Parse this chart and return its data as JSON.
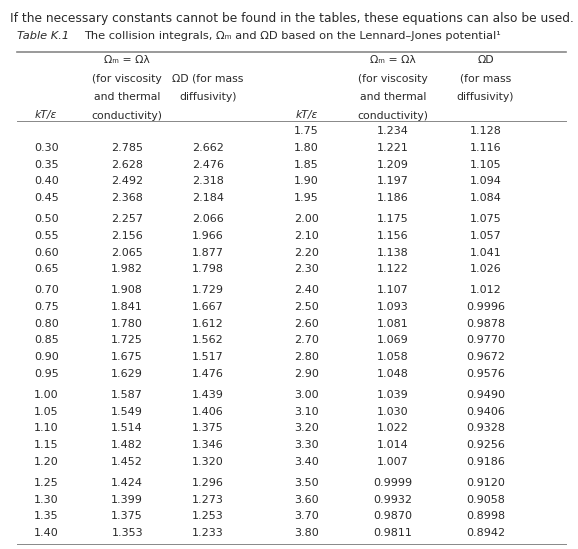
{
  "top_text": "If the necessary constants cannot be found in the tables, these equations can also be used.",
  "table_label": "Table K.1",
  "table_subtitle": "The collision integrals, Ωₘ and ΩD based on the Lennard–Jones potential¹",
  "col0_header_line1": "Ωₘ = Ωλ",
  "col0_header_line2": "(for viscosity",
  "col0_header_line3": "and thermal",
  "col0_header_line4": "conductivity)",
  "col1_header_line1": "ΩD (for mass",
  "col1_header_line2": "diffusivity)",
  "col4_header_line1": "Ωₘ = Ωλ",
  "col4_header_line2": "(for viscosity",
  "col4_header_line3": "and thermal",
  "col4_header_line4": "conductivity)",
  "col5_header_line1": "ΩD",
  "col5_header_line2": "(for mass",
  "col5_header_line3": "diffusivity)",
  "kTe_label": "kT/ε",
  "data": [
    [
      "",
      "",
      "",
      "1.75",
      "1.234",
      "1.128"
    ],
    [
      "0.30",
      "2.785",
      "2.662",
      "1.80",
      "1.221",
      "1.116"
    ],
    [
      "0.35",
      "2.628",
      "2.476",
      "1.85",
      "1.209",
      "1.105"
    ],
    [
      "0.40",
      "2.492",
      "2.318",
      "1.90",
      "1.197",
      "1.094"
    ],
    [
      "0.45",
      "2.368",
      "2.184",
      "1.95",
      "1.186",
      "1.084"
    ],
    [
      "",
      "",
      "",
      "",
      "",
      ""
    ],
    [
      "0.50",
      "2.257",
      "2.066",
      "2.00",
      "1.175",
      "1.075"
    ],
    [
      "0.55",
      "2.156",
      "1.966",
      "2.10",
      "1.156",
      "1.057"
    ],
    [
      "0.60",
      "2.065",
      "1.877",
      "2.20",
      "1.138",
      "1.041"
    ],
    [
      "0.65",
      "1.982",
      "1.798",
      "2.30",
      "1.122",
      "1.026"
    ],
    [
      "",
      "",
      "",
      "",
      "",
      ""
    ],
    [
      "0.70",
      "1.908",
      "1.729",
      "2.40",
      "1.107",
      "1.012"
    ],
    [
      "0.75",
      "1.841",
      "1.667",
      "2.50",
      "1.093",
      "0.9996"
    ],
    [
      "0.80",
      "1.780",
      "1.612",
      "2.60",
      "1.081",
      "0.9878"
    ],
    [
      "0.85",
      "1.725",
      "1.562",
      "2.70",
      "1.069",
      "0.9770"
    ],
    [
      "0.90",
      "1.675",
      "1.517",
      "2.80",
      "1.058",
      "0.9672"
    ],
    [
      "0.95",
      "1.629",
      "1.476",
      "2.90",
      "1.048",
      "0.9576"
    ],
    [
      "",
      "",
      "",
      "",
      "",
      ""
    ],
    [
      "1.00",
      "1.587",
      "1.439",
      "3.00",
      "1.039",
      "0.9490"
    ],
    [
      "1.05",
      "1.549",
      "1.406",
      "3.10",
      "1.030",
      "0.9406"
    ],
    [
      "1.10",
      "1.514",
      "1.375",
      "3.20",
      "1.022",
      "0.9328"
    ],
    [
      "1.15",
      "1.482",
      "1.346",
      "3.30",
      "1.014",
      "0.9256"
    ],
    [
      "1.20",
      "1.452",
      "1.320",
      "3.40",
      "1.007",
      "0.9186"
    ],
    [
      "",
      "",
      "",
      "",
      "",
      ""
    ],
    [
      "1.25",
      "1.424",
      "1.296",
      "3.50",
      "0.9999",
      "0.9120"
    ],
    [
      "1.30",
      "1.399",
      "1.273",
      "3.60",
      "0.9932",
      "0.9058"
    ],
    [
      "1.35",
      "1.375",
      "1.253",
      "3.70",
      "0.9870",
      "0.8998"
    ],
    [
      "1.40",
      "1.353",
      "1.233",
      "3.80",
      "0.9811",
      "0.8942"
    ]
  ],
  "bg_color": "#ffffff",
  "text_color": "#2a2a2a",
  "line_color": "#888888",
  "font_size_top": 8.8,
  "font_size_title": 8.2,
  "font_size_header": 7.8,
  "font_size_data": 8.0,
  "fig_width": 5.78,
  "fig_height": 5.49,
  "dpi": 100
}
